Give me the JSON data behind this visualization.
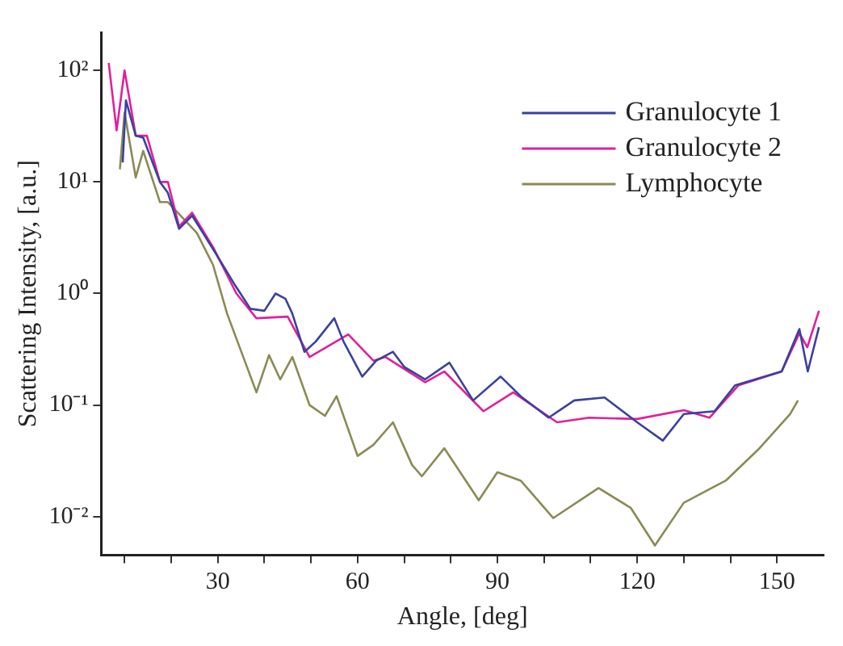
{
  "chart_data": {
    "type": "line",
    "xlabel": "Angle, [deg]",
    "ylabel": "Scattering Intensity, [a.u.]",
    "log": "y",
    "grid": false,
    "legend": "top right",
    "marker": "none",
    "line_style": "solid",
    "xlim": [
      5,
      160
    ],
    "ylim": [
      0.0045,
      220
    ],
    "xticks": [
      {
        "value": 10,
        "label": null
      },
      {
        "value": 20,
        "label": null
      },
      30,
      {
        "value": 40,
        "label": null
      },
      {
        "value": 50,
        "label": null
      },
      60,
      {
        "value": 70,
        "label": null
      },
      {
        "value": 80,
        "label": null
      },
      90,
      {
        "value": 100,
        "label": null
      },
      {
        "value": 110,
        "label": null
      },
      120,
      {
        "value": 130,
        "label": null
      },
      {
        "value": 140,
        "label": null
      },
      150
    ],
    "yticks": [
      {
        "value": 0.01,
        "label": "10⁻²"
      },
      {
        "value": 0.1,
        "label": "10⁻¹"
      },
      {
        "value": 1,
        "label": "10⁰"
      },
      {
        "value": 10,
        "label": "10¹"
      },
      {
        "value": 100,
        "label": "10²"
      }
    ],
    "series": [
      {
        "name": "Granulocyte 1",
        "color": "#3b40a0",
        "x": [
          9.6,
          10.3,
          12.4,
          14,
          17.6,
          19.3,
          21.7,
          24.5,
          29,
          33.8,
          37,
          40,
          42.4,
          44.5,
          46,
          48.6,
          51,
          55,
          57,
          61,
          64,
          67.6,
          70,
          74.5,
          79.7,
          84.8,
          90.7,
          95,
          101,
          106.5,
          113,
          120,
          125.5,
          130,
          136.6,
          141,
          151,
          154.8,
          156.6,
          159
        ],
        "values": [
          15,
          54,
          26,
          25,
          10,
          8,
          3.8,
          5,
          2.5,
          1.17,
          0.73,
          0.7,
          1.0,
          0.9,
          0.66,
          0.3,
          0.37,
          0.6,
          0.37,
          0.18,
          0.25,
          0.3,
          0.22,
          0.17,
          0.24,
          0.11,
          0.18,
          0.12,
          0.077,
          0.11,
          0.117,
          0.07,
          0.048,
          0.083,
          0.088,
          0.15,
          0.2,
          0.48,
          0.2,
          0.5
        ]
      },
      {
        "name": "Granulocyte 2",
        "color": "#e0209a",
        "x": [
          6.6,
          8.3,
          10,
          12.4,
          14.8,
          17.6,
          19.3,
          21.7,
          24.5,
          29,
          34,
          38.3,
          45,
          49.7,
          58,
          63.4,
          66,
          74.5,
          78.6,
          87,
          93.4,
          102.8,
          109.7,
          120,
          130,
          135.5,
          141.7,
          151,
          154.8,
          156.5,
          159
        ],
        "values": [
          117,
          29,
          100,
          26,
          26,
          10,
          10,
          4,
          5.3,
          2.6,
          1.0,
          0.6,
          0.62,
          0.27,
          0.43,
          0.25,
          0.27,
          0.16,
          0.2,
          0.088,
          0.13,
          0.07,
          0.077,
          0.075,
          0.09,
          0.077,
          0.15,
          0.2,
          0.44,
          0.33,
          0.7
        ]
      },
      {
        "name": "Lymphocyte",
        "color": "#8a8a55",
        "x": [
          9,
          10,
          12.4,
          14,
          17.6,
          19.3,
          25.5,
          29,
          32,
          38.3,
          41,
          43.4,
          46,
          49.7,
          53,
          55.5,
          60,
          63.4,
          67.6,
          71.7,
          73.8,
          78.6,
          86,
          90,
          95,
          102,
          111.7,
          118.6,
          123.8,
          130,
          139,
          146,
          152.8,
          154.5
        ],
        "values": [
          13,
          42,
          11,
          19,
          6.6,
          6.6,
          3.5,
          1.8,
          0.66,
          0.13,
          0.28,
          0.17,
          0.27,
          0.1,
          0.08,
          0.12,
          0.035,
          0.044,
          0.07,
          0.029,
          0.023,
          0.041,
          0.014,
          0.025,
          0.021,
          0.0097,
          0.018,
          0.012,
          0.0055,
          0.0133,
          0.021,
          0.04,
          0.083,
          0.11
        ]
      }
    ]
  }
}
